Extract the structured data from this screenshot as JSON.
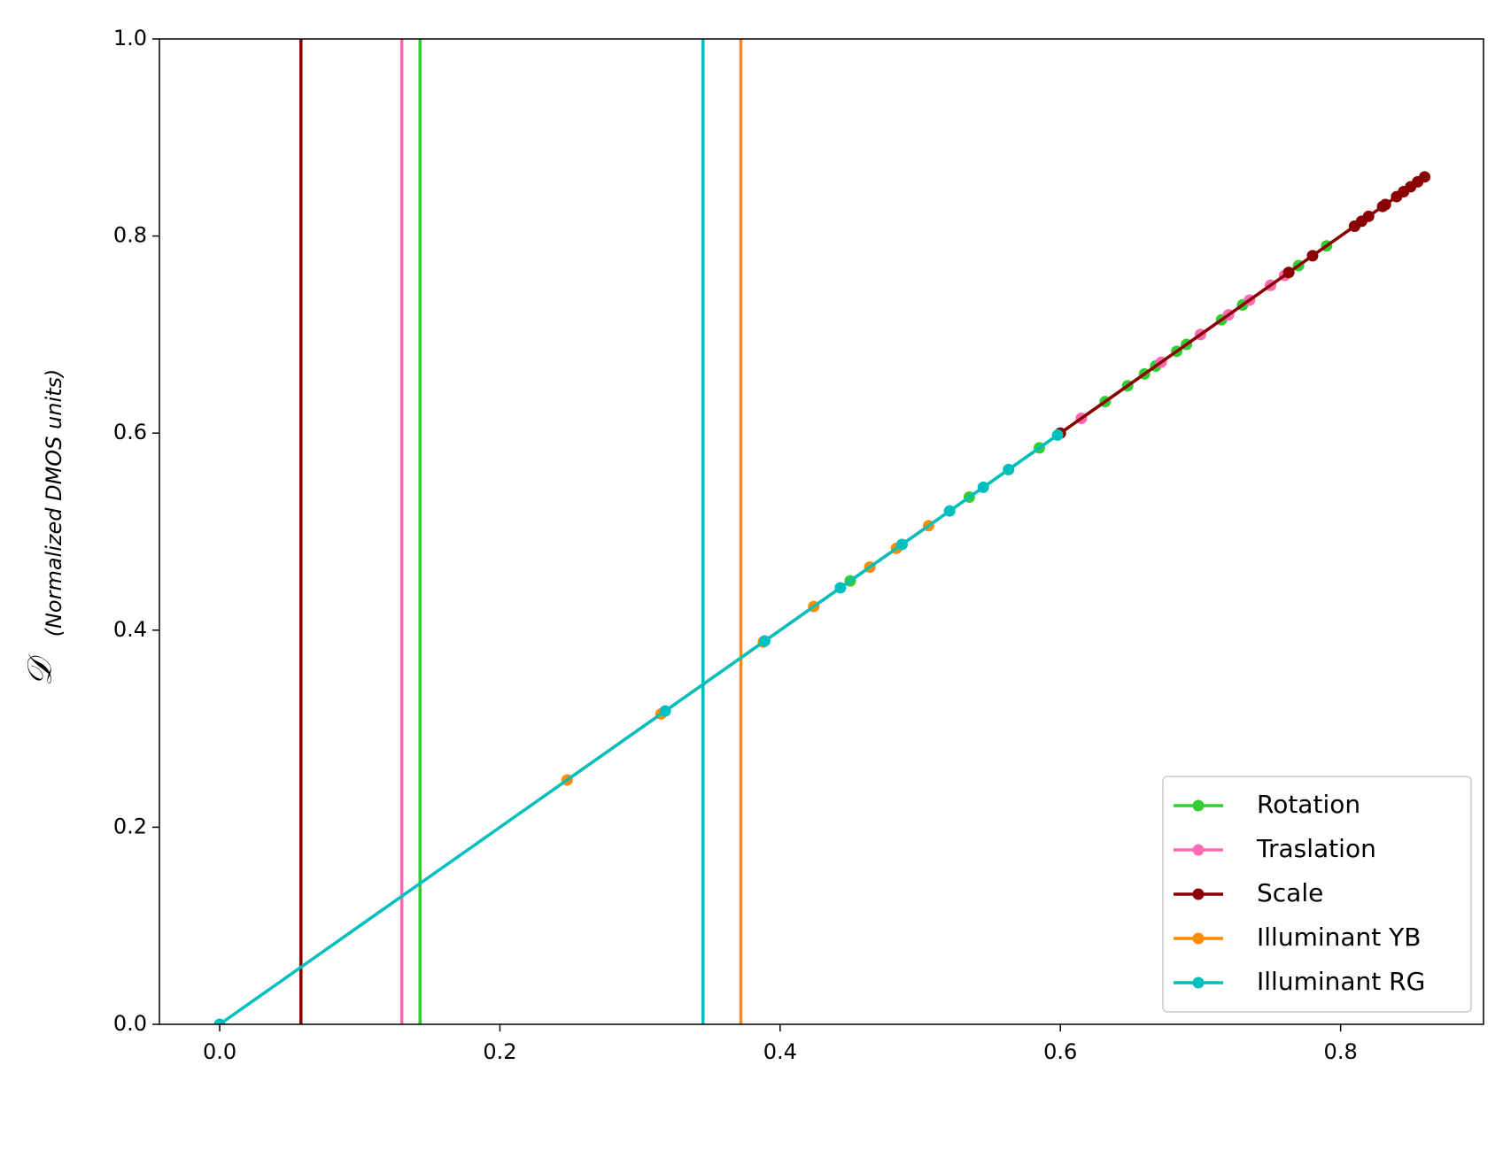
{
  "chart_data": {
    "type": "line",
    "ylabel": "𝒟",
    "ylabel_note": "(Normalized DMOS units)",
    "xlim": [
      -0.043,
      0.902
    ],
    "ylim": [
      0,
      1
    ],
    "xticks": [
      {
        "value": 0,
        "label": "0.0"
      },
      0.2,
      0.4,
      0.6,
      0.8
    ],
    "yticks": [
      {
        "value": 0,
        "label": "0.0"
      },
      0.2,
      0.4,
      0.6,
      0.8,
      {
        "value": 1,
        "label": "1.0"
      }
    ],
    "legend": "lower right",
    "series": [
      {
        "name": "Rotation",
        "color": "#32cd32",
        "vline": 0.143,
        "x": [
          0.45,
          0.535,
          0.585,
          0.615,
          0.632,
          0.648,
          0.66,
          0.668,
          0.683,
          0.69,
          0.7,
          0.715,
          0.73,
          0.75,
          0.77,
          0.79,
          0.81
        ],
        "values": [
          0.45,
          0.535,
          0.585,
          0.615,
          0.632,
          0.648,
          0.66,
          0.668,
          0.683,
          0.69,
          0.7,
          0.715,
          0.73,
          0.75,
          0.77,
          0.79,
          0.81
        ]
      },
      {
        "name": "Traslation",
        "color": "#ff69b4",
        "vline": 0.13,
        "x": [
          0.615,
          0.672,
          0.7,
          0.72,
          0.735,
          0.75,
          0.76
        ],
        "values": [
          0.615,
          0.672,
          0.7,
          0.72,
          0.735,
          0.75,
          0.76
        ]
      },
      {
        "name": "Scale",
        "color": "#8b0000",
        "vline": 0.058,
        "x": [
          0.6,
          0.763,
          0.78,
          0.81,
          0.815,
          0.82,
          0.83,
          0.832,
          0.84,
          0.845,
          0.85,
          0.855,
          0.86
        ],
        "values": [
          0.6,
          0.763,
          0.78,
          0.81,
          0.815,
          0.82,
          0.83,
          0.832,
          0.84,
          0.845,
          0.85,
          0.855,
          0.86
        ]
      },
      {
        "name": "Illuminant YB",
        "color": "#ff8c00",
        "vline": 0.372,
        "x": [
          0.248,
          0.315,
          0.388,
          0.424,
          0.464,
          0.483,
          0.506
        ],
        "values": [
          0.248,
          0.315,
          0.388,
          0.424,
          0.464,
          0.483,
          0.506
        ]
      },
      {
        "name": "Illuminant RG",
        "color": "#00bfbf",
        "vline": 0.345,
        "x": [
          0,
          0.318,
          0.389,
          0.443,
          0.487,
          0.521,
          0.545,
          0.563,
          0.598
        ],
        "values": [
          0,
          0.318,
          0.389,
          0.443,
          0.487,
          0.521,
          0.545,
          0.563,
          0.598
        ]
      }
    ]
  }
}
